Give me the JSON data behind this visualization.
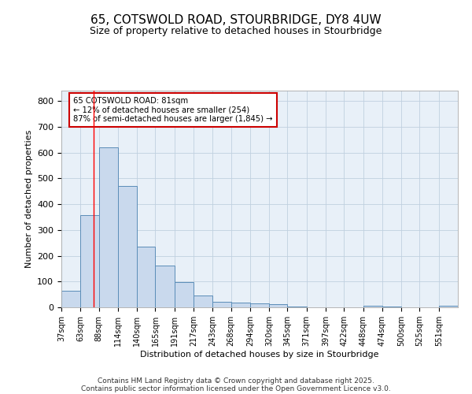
{
  "title_line1": "65, COTSWOLD ROAD, STOURBRIDGE, DY8 4UW",
  "title_line2": "Size of property relative to detached houses in Stourbridge",
  "xlabel": "Distribution of detached houses by size in Stourbridge",
  "ylabel": "Number of detached properties",
  "bin_labels": [
    "37sqm",
    "63sqm",
    "88sqm",
    "114sqm",
    "140sqm",
    "165sqm",
    "191sqm",
    "217sqm",
    "243sqm",
    "268sqm",
    "294sqm",
    "320sqm",
    "345sqm",
    "371sqm",
    "397sqm",
    "422sqm",
    "448sqm",
    "474sqm",
    "500sqm",
    "525sqm",
    "551sqm"
  ],
  "bar_values": [
    63,
    358,
    620,
    470,
    235,
    162,
    99,
    46,
    20,
    18,
    15,
    13,
    2,
    1,
    0,
    0,
    6,
    2,
    1,
    1,
    5
  ],
  "bar_color": "#c9d9ed",
  "bar_edge_color": "#5b8db8",
  "ylim": [
    0,
    840
  ],
  "yticks": [
    0,
    100,
    200,
    300,
    400,
    500,
    600,
    700,
    800
  ],
  "red_line_x": 81,
  "bin_edges_sqm": [
    37,
    63,
    88,
    114,
    140,
    165,
    191,
    217,
    243,
    268,
    294,
    320,
    345,
    371,
    397,
    422,
    448,
    474,
    500,
    525,
    551,
    577
  ],
  "annotation_title": "65 COTSWOLD ROAD: 81sqm",
  "annotation_line2": "← 12% of detached houses are smaller (254)",
  "annotation_line3": "87% of semi-detached houses are larger (1,845) →",
  "annotation_box_color": "#ffffff",
  "annotation_box_edge": "#cc0000",
  "footnote1": "Contains HM Land Registry data © Crown copyright and database right 2025.",
  "footnote2": "Contains public sector information licensed under the Open Government Licence v3.0.",
  "background_color": "#ffffff",
  "plot_bg_color": "#e8f0f8",
  "grid_color": "#c0d0e0"
}
